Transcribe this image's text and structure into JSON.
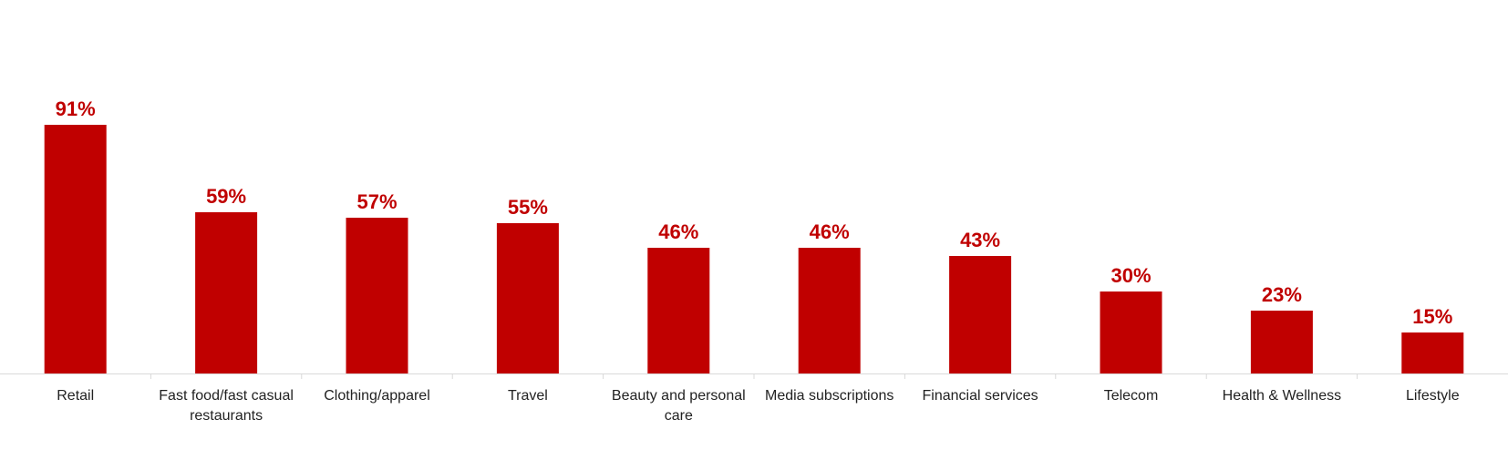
{
  "colors": {
    "bar": "#c00000",
    "label": "#c00000",
    "axis": "#d9d9d9",
    "text": "#222222"
  },
  "chart_data": {
    "type": "bar",
    "categories": [
      "Retail",
      "Fast food/fast casual restaurants",
      "Clothing/apparel",
      "Travel",
      "Beauty and personal care",
      "Media subscriptions",
      "Financial services",
      "Telecom",
      "Health & Wellness",
      "Lifestyle"
    ],
    "category_lines": [
      [
        "Retail"
      ],
      [
        "Fast food/fast casual",
        "restaurants"
      ],
      [
        "Clothing/apparel"
      ],
      [
        "Travel"
      ],
      [
        "Beauty and personal",
        "care"
      ],
      [
        "Media subscriptions"
      ],
      [
        "Financial services"
      ],
      [
        "Telecom"
      ],
      [
        "Health & Wellness"
      ],
      [
        "Lifestyle"
      ]
    ],
    "values": [
      91,
      59,
      57,
      55,
      46,
      46,
      43,
      30,
      23,
      15
    ],
    "data_labels": [
      "91%",
      "59%",
      "57%",
      "55%",
      "46%",
      "46%",
      "43%",
      "30%",
      "23%",
      "15%"
    ],
    "title": "",
    "xlabel": "",
    "ylabel": "",
    "ylim": [
      0,
      100
    ],
    "grid": false,
    "legend": "none"
  }
}
